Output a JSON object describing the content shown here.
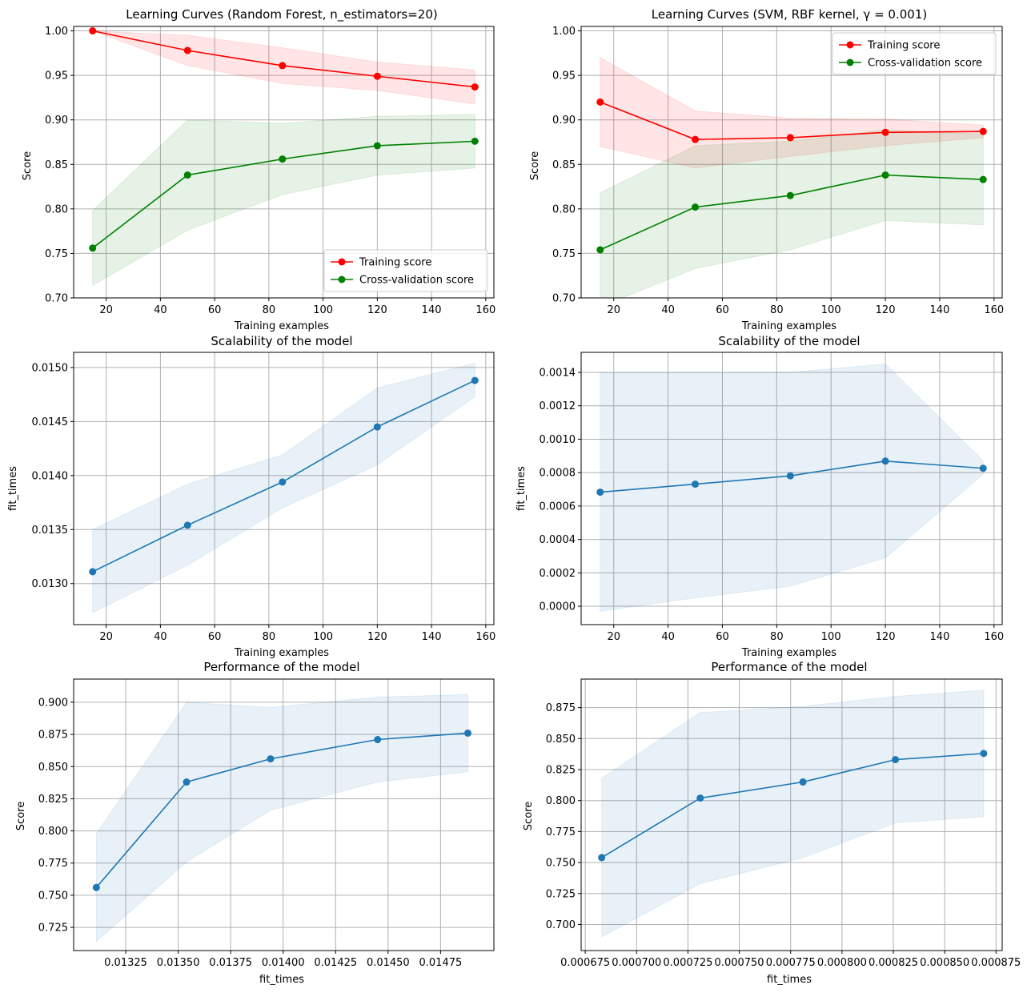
{
  "colors": {
    "train": "#ff0000",
    "cv": "#008000",
    "blue": "#1f77b4",
    "grid": "#b0b0b0"
  },
  "chart_data": [
    {
      "id": "lc-rf",
      "type": "line",
      "title": "Learning Curves (Random Forest, n_estimators=20)",
      "xlabel": "Training examples",
      "ylabel": "Score",
      "xlim": [
        8,
        163
      ],
      "ylim": [
        0.7,
        1.005
      ],
      "xticks": [
        20,
        40,
        60,
        80,
        100,
        120,
        140,
        160
      ],
      "xtick_labels": [
        "20",
        "40",
        "60",
        "80",
        "100",
        "120",
        "140",
        "160"
      ],
      "yticks": [
        0.7,
        0.75,
        0.8,
        0.85,
        0.9,
        0.95,
        1.0
      ],
      "ytick_labels": [
        "0.70",
        "0.75",
        "0.80",
        "0.85",
        "0.90",
        "0.95",
        "1.00"
      ],
      "legend": "lower-right",
      "series": [
        {
          "name": "Training score",
          "color": "#ff0000",
          "x": [
            15,
            50,
            85,
            120,
            156
          ],
          "y": [
            1.0,
            0.978,
            0.961,
            0.949,
            0.937
          ],
          "lower": [
            1.0,
            0.961,
            0.941,
            0.933,
            0.918
          ],
          "upper": [
            1.0,
            0.995,
            0.981,
            0.965,
            0.956
          ]
        },
        {
          "name": "Cross-validation score",
          "color": "#008000",
          "x": [
            15,
            50,
            85,
            120,
            156
          ],
          "y": [
            0.756,
            0.838,
            0.856,
            0.871,
            0.876
          ],
          "lower": [
            0.714,
            0.776,
            0.816,
            0.838,
            0.846
          ],
          "upper": [
            0.798,
            0.9,
            0.896,
            0.904,
            0.906
          ]
        }
      ]
    },
    {
      "id": "lc-svm",
      "type": "line",
      "title": "Learning Curves (SVM, RBF kernel, γ = 0.001)",
      "xlabel": "Training examples",
      "ylabel": "Score",
      "xlim": [
        8,
        163
      ],
      "ylim": [
        0.7,
        1.005
      ],
      "xticks": [
        20,
        40,
        60,
        80,
        100,
        120,
        140,
        160
      ],
      "xtick_labels": [
        "20",
        "40",
        "60",
        "80",
        "100",
        "120",
        "140",
        "160"
      ],
      "yticks": [
        0.7,
        0.75,
        0.8,
        0.85,
        0.9,
        0.95,
        1.0
      ],
      "ytick_labels": [
        "0.70",
        "0.75",
        "0.80",
        "0.85",
        "0.90",
        "0.95",
        "1.00"
      ],
      "legend": "upper-right",
      "series": [
        {
          "name": "Training score",
          "color": "#ff0000",
          "x": [
            15,
            50,
            85,
            120,
            156
          ],
          "y": [
            0.92,
            0.878,
            0.88,
            0.886,
            0.887
          ],
          "lower": [
            0.87,
            0.846,
            0.859,
            0.871,
            0.88
          ],
          "upper": [
            0.97,
            0.91,
            0.902,
            0.901,
            0.894
          ]
        },
        {
          "name": "Cross-validation score",
          "color": "#008000",
          "x": [
            15,
            50,
            85,
            120,
            156
          ],
          "y": [
            0.754,
            0.802,
            0.815,
            0.838,
            0.833
          ],
          "lower": [
            0.69,
            0.733,
            0.754,
            0.787,
            0.782
          ],
          "upper": [
            0.818,
            0.871,
            0.876,
            0.889,
            0.884
          ]
        }
      ]
    },
    {
      "id": "sc-rf",
      "type": "line",
      "title": "Scalability of the model",
      "xlabel": "Training examples",
      "ylabel": "fit_times",
      "xlim": [
        8,
        163
      ],
      "ylim": [
        0.01262,
        0.01514
      ],
      "xticks": [
        20,
        40,
        60,
        80,
        100,
        120,
        140,
        160
      ],
      "xtick_labels": [
        "20",
        "40",
        "60",
        "80",
        "100",
        "120",
        "140",
        "160"
      ],
      "yticks": [
        0.013,
        0.0135,
        0.014,
        0.0145,
        0.015
      ],
      "ytick_labels": [
        "0.0130",
        "0.0135",
        "0.0140",
        "0.0145",
        "0.0150"
      ],
      "series": [
        {
          "name": "fit_times",
          "color": "#1f77b4",
          "x": [
            15,
            50,
            85,
            120,
            156
          ],
          "y": [
            0.01311,
            0.01354,
            0.01394,
            0.01445,
            0.01488
          ],
          "lower": [
            0.01273,
            0.01317,
            0.0137,
            0.0141,
            0.01473
          ],
          "upper": [
            0.0135,
            0.01392,
            0.01419,
            0.01481,
            0.01504
          ]
        }
      ]
    },
    {
      "id": "sc-svm",
      "type": "line",
      "title": "Scalability of the model",
      "xlabel": "Training examples",
      "ylabel": "fit_times",
      "xlim": [
        8,
        163
      ],
      "ylim": [
        -0.00011,
        0.00152
      ],
      "xticks": [
        20,
        40,
        60,
        80,
        100,
        120,
        140,
        160
      ],
      "xtick_labels": [
        "20",
        "40",
        "60",
        "80",
        "100",
        "120",
        "140",
        "160"
      ],
      "yticks": [
        0.0,
        0.0002,
        0.0004,
        0.0006,
        0.0008,
        0.001,
        0.0012,
        0.0014
      ],
      "ytick_labels": [
        "0.0000",
        "0.0002",
        "0.0004",
        "0.0006",
        "0.0008",
        "0.0010",
        "0.0012",
        "0.0014"
      ],
      "series": [
        {
          "name": "fit_times",
          "color": "#1f77b4",
          "x": [
            15,
            50,
            85,
            120,
            156
          ],
          "y": [
            0.000683,
            0.000731,
            0.000781,
            0.000869,
            0.000826
          ],
          "lower": [
            -3e-05,
            5e-05,
            0.00012,
            0.00029,
            0.00079
          ],
          "upper": [
            0.0014,
            0.0014,
            0.0014,
            0.00145,
            0.00087
          ]
        }
      ]
    },
    {
      "id": "pf-rf",
      "type": "line",
      "title": "Performance of the model",
      "xlabel": "fit_times",
      "ylabel": "Score",
      "xlim": [
        0.013002,
        0.015004
      ],
      "ylim": [
        0.707,
        0.918
      ],
      "xticks": [
        0.01325,
        0.0135,
        0.01375,
        0.014,
        0.01425,
        0.0145,
        0.01475
      ],
      "xtick_labels": [
        "0.01325",
        "0.01350",
        "0.01375",
        "0.01400",
        "0.01425",
        "0.01450",
        "0.01475"
      ],
      "yticks": [
        0.725,
        0.75,
        0.775,
        0.8,
        0.825,
        0.85,
        0.875,
        0.9
      ],
      "ytick_labels": [
        "0.725",
        "0.750",
        "0.775",
        "0.800",
        "0.825",
        "0.850",
        "0.875",
        "0.900"
      ],
      "series": [
        {
          "name": "Score",
          "color": "#1f77b4",
          "x": [
            0.01311,
            0.01354,
            0.01394,
            0.01445,
            0.01488
          ],
          "y": [
            0.756,
            0.838,
            0.856,
            0.871,
            0.876
          ],
          "lower": [
            0.714,
            0.776,
            0.816,
            0.838,
            0.846
          ],
          "upper": [
            0.798,
            0.9,
            0.896,
            0.904,
            0.906
          ]
        }
      ]
    },
    {
      "id": "pf-svm",
      "type": "line",
      "title": "Performance of the model",
      "xlabel": "fit_times",
      "ylabel": "Score",
      "xlim": [
        0.000673,
        0.000878
      ],
      "ylim": [
        0.679,
        0.898
      ],
      "xticks": [
        0.000675,
        0.0007,
        0.000725,
        0.00075,
        0.000775,
        0.0008,
        0.000825,
        0.00085,
        0.000875
      ],
      "xtick_labels": [
        "0.000675",
        "0.000700",
        "0.000725",
        "0.000750",
        "0.000775",
        "0.000800",
        "0.000825",
        "0.000850",
        "0.000875"
      ],
      "yticks": [
        0.7,
        0.725,
        0.75,
        0.775,
        0.8,
        0.825,
        0.85,
        0.875
      ],
      "ytick_labels": [
        "0.700",
        "0.725",
        "0.750",
        "0.775",
        "0.800",
        "0.825",
        "0.850",
        "0.875"
      ],
      "series": [
        {
          "name": "Score",
          "color": "#1f77b4",
          "x": [
            0.000683,
            0.000731,
            0.000781,
            0.000826,
            0.000869
          ],
          "y": [
            0.754,
            0.802,
            0.815,
            0.833,
            0.838
          ],
          "lower": [
            0.69,
            0.733,
            0.754,
            0.782,
            0.787
          ],
          "upper": [
            0.818,
            0.871,
            0.876,
            0.884,
            0.889
          ]
        }
      ]
    }
  ]
}
